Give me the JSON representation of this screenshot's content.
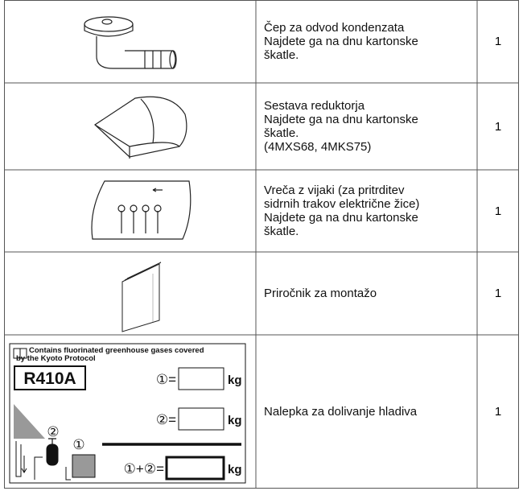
{
  "table": {
    "rows": [
      {
        "description": [
          "Čep za odvod kondenzata",
          "Najdete ga na dnu kartonske",
          "škatle."
        ],
        "quantity": 1
      },
      {
        "description": [
          "Sestava reduktorja",
          "Najdete ga na dnu kartonske",
          "škatle.",
          "(4MXS68, 4MKS75)"
        ],
        "quantity": 1
      },
      {
        "description": [
          "Vreča z vijaki (za pritrditev",
          "sidrnih trakov električne žice)",
          "Najdete ga na dnu kartonske",
          "škatle."
        ],
        "quantity": 1
      },
      {
        "description": [
          "Priročnik za montažo"
        ],
        "quantity": 1
      },
      {
        "description": [
          "Nalepka za dolivanje hladiva"
        ],
        "quantity": 1
      }
    ]
  },
  "label": {
    "notice": [
      "Contains fluorinated greenhouse gases covered",
      "by the Kyoto Protocol"
    ],
    "refrigerant": "R410A",
    "lines": [
      {
        "prefix": "①=",
        "unit": "kg"
      },
      {
        "prefix": "②=",
        "unit": "kg"
      },
      {
        "prefix": "①+②=",
        "unit": "kg"
      }
    ],
    "markers": [
      "②",
      "①"
    ]
  }
}
